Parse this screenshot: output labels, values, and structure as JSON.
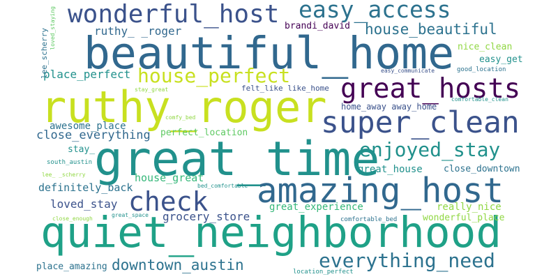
{
  "colors": {
    "background": "#ffffff",
    "dark_purple": "#440154",
    "indigo": "#3b528b",
    "navy_blue": "#31688e",
    "blue_teal": "#2c728e",
    "teal": "#21918c",
    "sea_green": "#1fa187",
    "green": "#35b779",
    "light_green": "#5ec962",
    "lime": "#90d743",
    "yellow_lime": "#c8e020"
  },
  "words": [
    "beautiful_home",
    "ruthy_roger",
    "great_time",
    "quiet_neighborhood",
    "amazing_host",
    "super_clean",
    "great_hosts",
    "wonderful_host",
    "easy_access",
    "check",
    "everything_need",
    "enjoyed_stay",
    "house_perfect",
    "house_beautiful",
    "downtown_austin",
    "close_everything",
    "ruthy_ _roger",
    "grocery_store",
    "place_perfect",
    "brandi_david",
    "loved_stay",
    "great_experience",
    "definitely_back",
    "house_great",
    "great_house",
    "awesome_place",
    "perfect_location",
    "home_away away_home",
    "felt_like like_home",
    "close_downtown",
    "wonderful_place",
    "really_nice",
    "place_amazing",
    "nice_clean",
    "easy_get",
    "lee_scherry",
    "stay_",
    "loved_staying",
    "easy_communicate",
    "good_location",
    "stay_great",
    "comfortable_clean",
    "comfy_bed",
    "south_austin",
    "lee_ _scherry",
    "bed_comfortable",
    "close_enough",
    "great_space",
    "comfortable_bed",
    "location_perfect"
  ]
}
